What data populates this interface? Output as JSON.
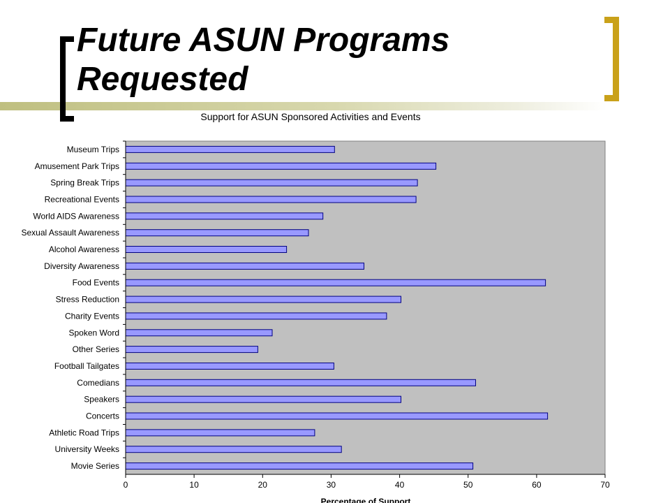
{
  "slide": {
    "title": "Future ASUN Programs Requested"
  },
  "colors": {
    "accent_gold": "#c9a11a",
    "bracket_dark": "#000000",
    "band_olive": "#bfbf80",
    "plot_background": "#c0c0c0",
    "bar_fill": "#9999ff",
    "bar_stroke": "#000080"
  },
  "chart_data": {
    "type": "bar",
    "orientation": "horizontal",
    "title": "Support for ASUN Sponsored Activities and Events",
    "xlabel": "Percentage of Support",
    "ylabel": "",
    "xlim": [
      0,
      70
    ],
    "xticks": [
      "0",
      "10",
      "20",
      "30",
      "40",
      "50",
      "60",
      "70"
    ],
    "grid": false,
    "legend": "none",
    "categories": [
      "Museum Trips",
      "Amusement Park Trips",
      "Spring Break Trips",
      "Recreational Events",
      "World AIDS Awareness",
      "Sexual Assault Awareness",
      "Alcohol Awareness",
      "Diversity Awareness",
      "Food Events",
      "Stress Reduction",
      "Charity Events",
      "Spoken Word",
      "Other Series",
      "Football Tailgates",
      "Comedians",
      "Speakers",
      "Concerts",
      "Athletic Road Trips",
      "University Weeks",
      "Movie Series"
    ],
    "values": [
      30.5,
      45.3,
      42.6,
      42.4,
      28.8,
      26.7,
      23.5,
      34.8,
      61.3,
      40.2,
      38.1,
      21.4,
      19.3,
      30.4,
      51.1,
      40.2,
      61.6,
      27.6,
      31.5,
      50.7
    ]
  }
}
